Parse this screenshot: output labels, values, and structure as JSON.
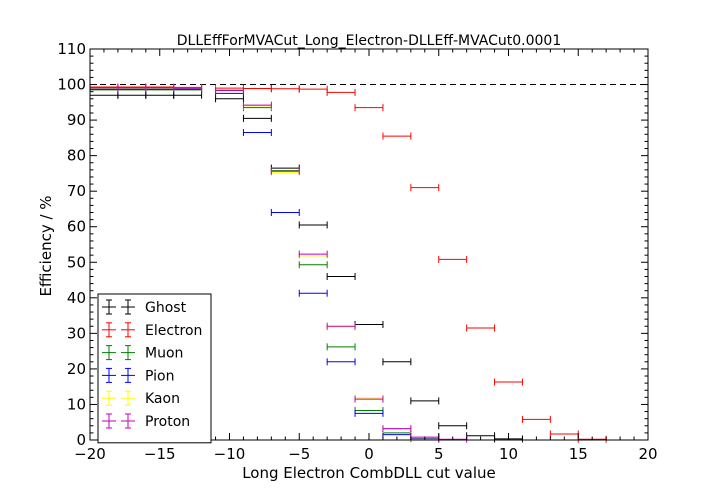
{
  "chart_data": {
    "type": "scatter",
    "title": "DLLEffForMVACut_Long_Electron-DLLEff-MVACut0.0001",
    "xlabel": "Long Electron CombDLL cut value",
    "ylabel": "Efficiency / %",
    "xlim": [
      -20,
      20
    ],
    "ylim": [
      0,
      110
    ],
    "xticks": [
      -20,
      -15,
      -10,
      -5,
      0,
      5,
      10,
      15,
      20
    ],
    "yticks": [
      0,
      10,
      20,
      30,
      40,
      50,
      60,
      70,
      80,
      90,
      100,
      110
    ],
    "xtick_labels": [
      "−20",
      "−15",
      "−10",
      "−5",
      "0",
      "5",
      "10",
      "15",
      "20"
    ],
    "ytick_labels": [
      "0",
      "10",
      "20",
      "30",
      "40",
      "50",
      "60",
      "70",
      "80",
      "90",
      "100",
      "110"
    ],
    "reference_line": 100,
    "legend_position": "lower-left",
    "series": [
      {
        "name": "Ghost",
        "color": "#000000",
        "points": [
          {
            "x": -19,
            "y": 97
          },
          {
            "x": -17,
            "y": 97
          },
          {
            "x": -15,
            "y": 97
          },
          {
            "x": -13,
            "y": 97
          },
          {
            "x": -10,
            "y": 96
          },
          {
            "x": -8,
            "y": 90.5
          },
          {
            "x": -6,
            "y": 76.5
          },
          {
            "x": -4,
            "y": 60.5
          },
          {
            "x": -2,
            "y": 46
          },
          {
            "x": 0,
            "y": 32.5
          },
          {
            "x": 2,
            "y": 22
          },
          {
            "x": 4,
            "y": 11
          },
          {
            "x": 6,
            "y": 4
          },
          {
            "x": 8,
            "y": 1.2
          },
          {
            "x": 10,
            "y": 0.3
          }
        ]
      },
      {
        "name": "Electron",
        "color": "#ff0000",
        "points": [
          {
            "x": -19,
            "y": 99.3
          },
          {
            "x": -17,
            "y": 99.3
          },
          {
            "x": -15,
            "y": 99.3
          },
          {
            "x": -13,
            "y": 99.2
          },
          {
            "x": -10,
            "y": 99
          },
          {
            "x": -8,
            "y": 98.9
          },
          {
            "x": -6,
            "y": 98.8
          },
          {
            "x": -4,
            "y": 98.7
          },
          {
            "x": -2,
            "y": 97.8
          },
          {
            "x": 0,
            "y": 93.5
          },
          {
            "x": 2,
            "y": 85.5
          },
          {
            "x": 4,
            "y": 71
          },
          {
            "x": 6,
            "y": 50.8
          },
          {
            "x": 8,
            "y": 31.5
          },
          {
            "x": 10,
            "y": 16.3
          },
          {
            "x": 12,
            "y": 5.8
          },
          {
            "x": 14,
            "y": 1.7
          },
          {
            "x": 16,
            "y": 0.2
          }
        ]
      },
      {
        "name": "Muon",
        "color": "#008000",
        "points": [
          {
            "x": -19,
            "y": 98.5
          },
          {
            "x": -17,
            "y": 98.5
          },
          {
            "x": -15,
            "y": 98.5
          },
          {
            "x": -13,
            "y": 98.5
          },
          {
            "x": -10,
            "y": 98.3
          },
          {
            "x": -8,
            "y": 93.5
          },
          {
            "x": -6,
            "y": 75.8
          },
          {
            "x": -4,
            "y": 49.3
          },
          {
            "x": -2,
            "y": 26.2
          },
          {
            "x": 0,
            "y": 8.3
          },
          {
            "x": 2,
            "y": 2
          },
          {
            "x": 4,
            "y": 0.5
          }
        ]
      },
      {
        "name": "Pion",
        "color": "#0000ff",
        "points": [
          {
            "x": -19,
            "y": 98.7
          },
          {
            "x": -17,
            "y": 98.7
          },
          {
            "x": -15,
            "y": 98.7
          },
          {
            "x": -13,
            "y": 98.7
          },
          {
            "x": -10,
            "y": 97.5
          },
          {
            "x": -8,
            "y": 86.5
          },
          {
            "x": -6,
            "y": 64
          },
          {
            "x": -4,
            "y": 41.3
          },
          {
            "x": -2,
            "y": 22
          },
          {
            "x": 0,
            "y": 7.5
          },
          {
            "x": 2,
            "y": 1.5
          },
          {
            "x": 4,
            "y": 0.4
          }
        ]
      },
      {
        "name": "Kaon",
        "color": "#ffff00",
        "points": [
          {
            "x": -19,
            "y": 99
          },
          {
            "x": -17,
            "y": 99
          },
          {
            "x": -15,
            "y": 99
          },
          {
            "x": -13,
            "y": 99
          },
          {
            "x": -10,
            "y": 98.5
          },
          {
            "x": -8,
            "y": 94
          },
          {
            "x": -6,
            "y": 75.3
          },
          {
            "x": -4,
            "y": 51.8
          },
          {
            "x": -2,
            "y": 31.8
          },
          {
            "x": 0,
            "y": 11.8
          },
          {
            "x": 2,
            "y": 3
          },
          {
            "x": 4,
            "y": 0.6
          }
        ]
      },
      {
        "name": "Proton",
        "color": "#bf00bf",
        "points": [
          {
            "x": -19,
            "y": 99.1
          },
          {
            "x": -17,
            "y": 99.1
          },
          {
            "x": -15,
            "y": 99.1
          },
          {
            "x": -13,
            "y": 99
          },
          {
            "x": -10,
            "y": 98.4
          },
          {
            "x": -8,
            "y": 94.2
          },
          {
            "x": -6,
            "y": 75.6
          },
          {
            "x": -4,
            "y": 52.3
          },
          {
            "x": -2,
            "y": 32
          },
          {
            "x": 0,
            "y": 11.5
          },
          {
            "x": 2,
            "y": 3.2
          },
          {
            "x": 4,
            "y": 0.8
          },
          {
            "x": 6,
            "y": 0.2
          }
        ]
      }
    ]
  }
}
